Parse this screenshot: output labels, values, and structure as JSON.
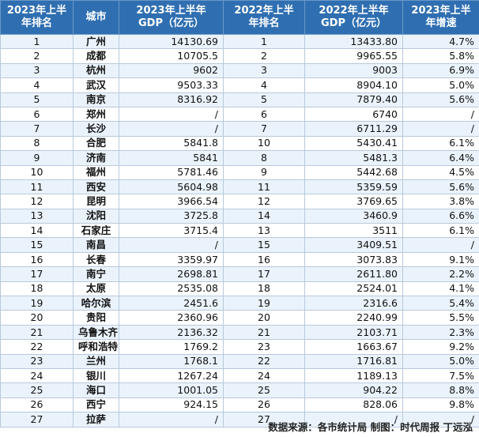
{
  "table": {
    "headers": [
      "2023年上半年排名",
      "城市",
      "2023年上半年GDP（亿元）",
      "2022年上半年排名",
      "2022年上半年GDP（亿元）",
      "2023年上半年增速"
    ],
    "rows": [
      [
        "1",
        "广州",
        "14130.69",
        "1",
        "13433.80",
        "4.7%"
      ],
      [
        "2",
        "成都",
        "10705.5",
        "2",
        "9965.55",
        "5.8%"
      ],
      [
        "3",
        "杭州",
        "9602",
        "3",
        "9003",
        "6.9%"
      ],
      [
        "4",
        "武汉",
        "9503.33",
        "4",
        "8904.10",
        "5.0%"
      ],
      [
        "5",
        "南京",
        "8316.92",
        "5",
        "7879.40",
        "5.6%"
      ],
      [
        "6",
        "郑州",
        "/",
        "6",
        "6740",
        "/"
      ],
      [
        "7",
        "长沙",
        "/",
        "7",
        "6711.29",
        "/"
      ],
      [
        "8",
        "合肥",
        "5841.8",
        "10",
        "5430.41",
        "6.1%"
      ],
      [
        "9",
        "济南",
        "5841",
        "8",
        "5481.3",
        "6.4%"
      ],
      [
        "10",
        "福州",
        "5781.46",
        "9",
        "5442.68",
        "4.5%"
      ],
      [
        "11",
        "西安",
        "5604.98",
        "11",
        "5359.59",
        "5.6%"
      ],
      [
        "12",
        "昆明",
        "3966.54",
        "12",
        "3769.65",
        "3.8%"
      ],
      [
        "13",
        "沈阳",
        "3725.8",
        "14",
        "3460.9",
        "6.6%"
      ],
      [
        "14",
        "石家庄",
        "3715.4",
        "13",
        "3511",
        "6.1%"
      ],
      [
        "15",
        "南昌",
        "/",
        "15",
        "3409.51",
        "/"
      ],
      [
        "16",
        "长春",
        "3359.97",
        "16",
        "3073.83",
        "9.1%"
      ],
      [
        "17",
        "南宁",
        "2698.81",
        "17",
        "2611.80",
        "2.2%"
      ],
      [
        "18",
        "太原",
        "2535.08",
        "18",
        "2524.01",
        "4.1%"
      ],
      [
        "19",
        "哈尔滨",
        "2451.6",
        "19",
        "2316.6",
        "5.4%"
      ],
      [
        "20",
        "贵阳",
        "2360.96",
        "20",
        "2240.99",
        "5.5%"
      ],
      [
        "21",
        "乌鲁木齐",
        "2136.32",
        "21",
        "2103.71",
        "2.3%"
      ],
      [
        "22",
        "呼和浩特",
        "1769.2",
        "23",
        "1663.67",
        "9.2%"
      ],
      [
        "23",
        "兰州",
        "1768.1",
        "22",
        "1716.81",
        "5.0%"
      ],
      [
        "24",
        "银川",
        "1267.24",
        "24",
        "1189.13",
        "7.5%"
      ],
      [
        "25",
        "海口",
        "1001.05",
        "25",
        "904.22",
        "8.8%"
      ],
      [
        "26",
        "西宁",
        "924.15",
        "26",
        "828.06",
        "9.8%"
      ],
      [
        "27",
        "拉萨",
        "/",
        "27",
        "/",
        "/"
      ]
    ]
  },
  "footer": "数据来源：各市统计局  制图：时代周报  丁远泓",
  "colors": {
    "header_bg": "#2f6fb1",
    "header_text": "#ffffff",
    "row_alt": "#eaf3fc",
    "row_base": "#ffffff",
    "grid": "#b8c9dc"
  }
}
